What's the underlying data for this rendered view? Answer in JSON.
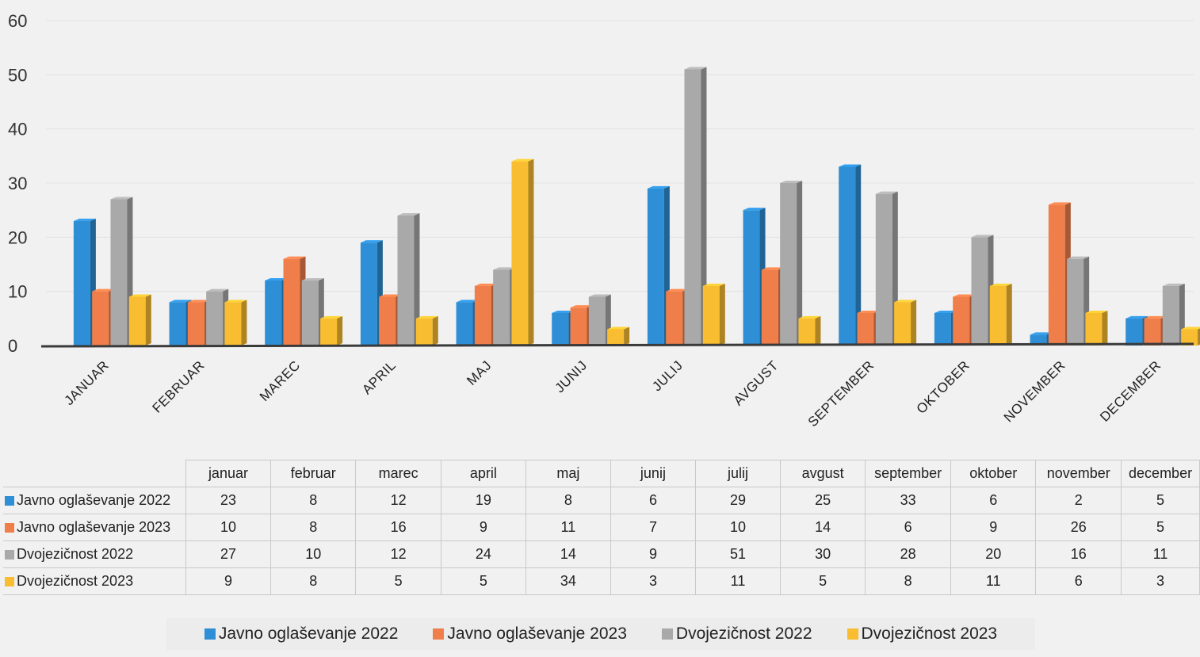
{
  "chart_data": {
    "type": "bar",
    "categories": [
      "JANUAR",
      "FEBRUAR",
      "MAREC",
      "APRIL",
      "MAJ",
      "JUNIJ",
      "JULIJ",
      "AVGUST",
      "SEPTEMBER",
      "OKTOBER",
      "NOVEMBER",
      "DECEMBER"
    ],
    "ylim": [
      0,
      60
    ],
    "yticks": [
      "0",
      "10",
      "20",
      "30",
      "40",
      "50",
      "60"
    ],
    "grid": true,
    "legend_placement": "bottom",
    "series": [
      {
        "name": "Javno oglaševanje 2022",
        "color": "#2e8fd6",
        "values": [
          23,
          8,
          12,
          19,
          8,
          6,
          29,
          25,
          33,
          6,
          2,
          5
        ]
      },
      {
        "name": "Javno oglaševanje 2023",
        "color": "#ef7e4a",
        "values": [
          10,
          8,
          16,
          9,
          11,
          7,
          10,
          14,
          6,
          9,
          26,
          5
        ]
      },
      {
        "name": "Dvojezičnost 2022",
        "color": "#a9a9a9",
        "values": [
          27,
          10,
          12,
          24,
          14,
          9,
          51,
          30,
          28,
          20,
          16,
          11
        ]
      },
      {
        "name": "Dvojezičnost 2023",
        "color": "#f8bd30",
        "values": [
          9,
          8,
          5,
          5,
          34,
          3,
          11,
          5,
          8,
          11,
          6,
          3
        ]
      }
    ]
  },
  "table": {
    "columns": [
      "januar",
      "februar",
      "marec",
      "april",
      "maj",
      "junij",
      "julij",
      "avgust",
      "september",
      "oktober",
      "november",
      "december"
    ],
    "rows": [
      {
        "label": "Javno oglaševanje 2022",
        "values": [
          "23",
          "8",
          "12",
          "19",
          "8",
          "6",
          "29",
          "25",
          "33",
          "6",
          "2",
          "5"
        ]
      },
      {
        "label": "Javno oglaševanje 2023",
        "values": [
          "10",
          "8",
          "16",
          "9",
          "11",
          "7",
          "10",
          "14",
          "6",
          "9",
          "26",
          "5"
        ]
      },
      {
        "label": "Dvojezičnost 2022",
        "values": [
          "27",
          "10",
          "12",
          "24",
          "14",
          "9",
          "51",
          "30",
          "28",
          "20",
          "16",
          "11"
        ]
      },
      {
        "label": "Dvojezičnost 2023",
        "values": [
          "9",
          "8",
          "5",
          "5",
          "34",
          "3",
          "11",
          "5",
          "8",
          "11",
          "6",
          "3"
        ]
      }
    ]
  },
  "legend": {
    "items": [
      "Javno oglaševanje 2022",
      "Javno oglaševanje 2023",
      "Dvojezičnost 2022",
      "Dvojezičnost 2023"
    ]
  }
}
